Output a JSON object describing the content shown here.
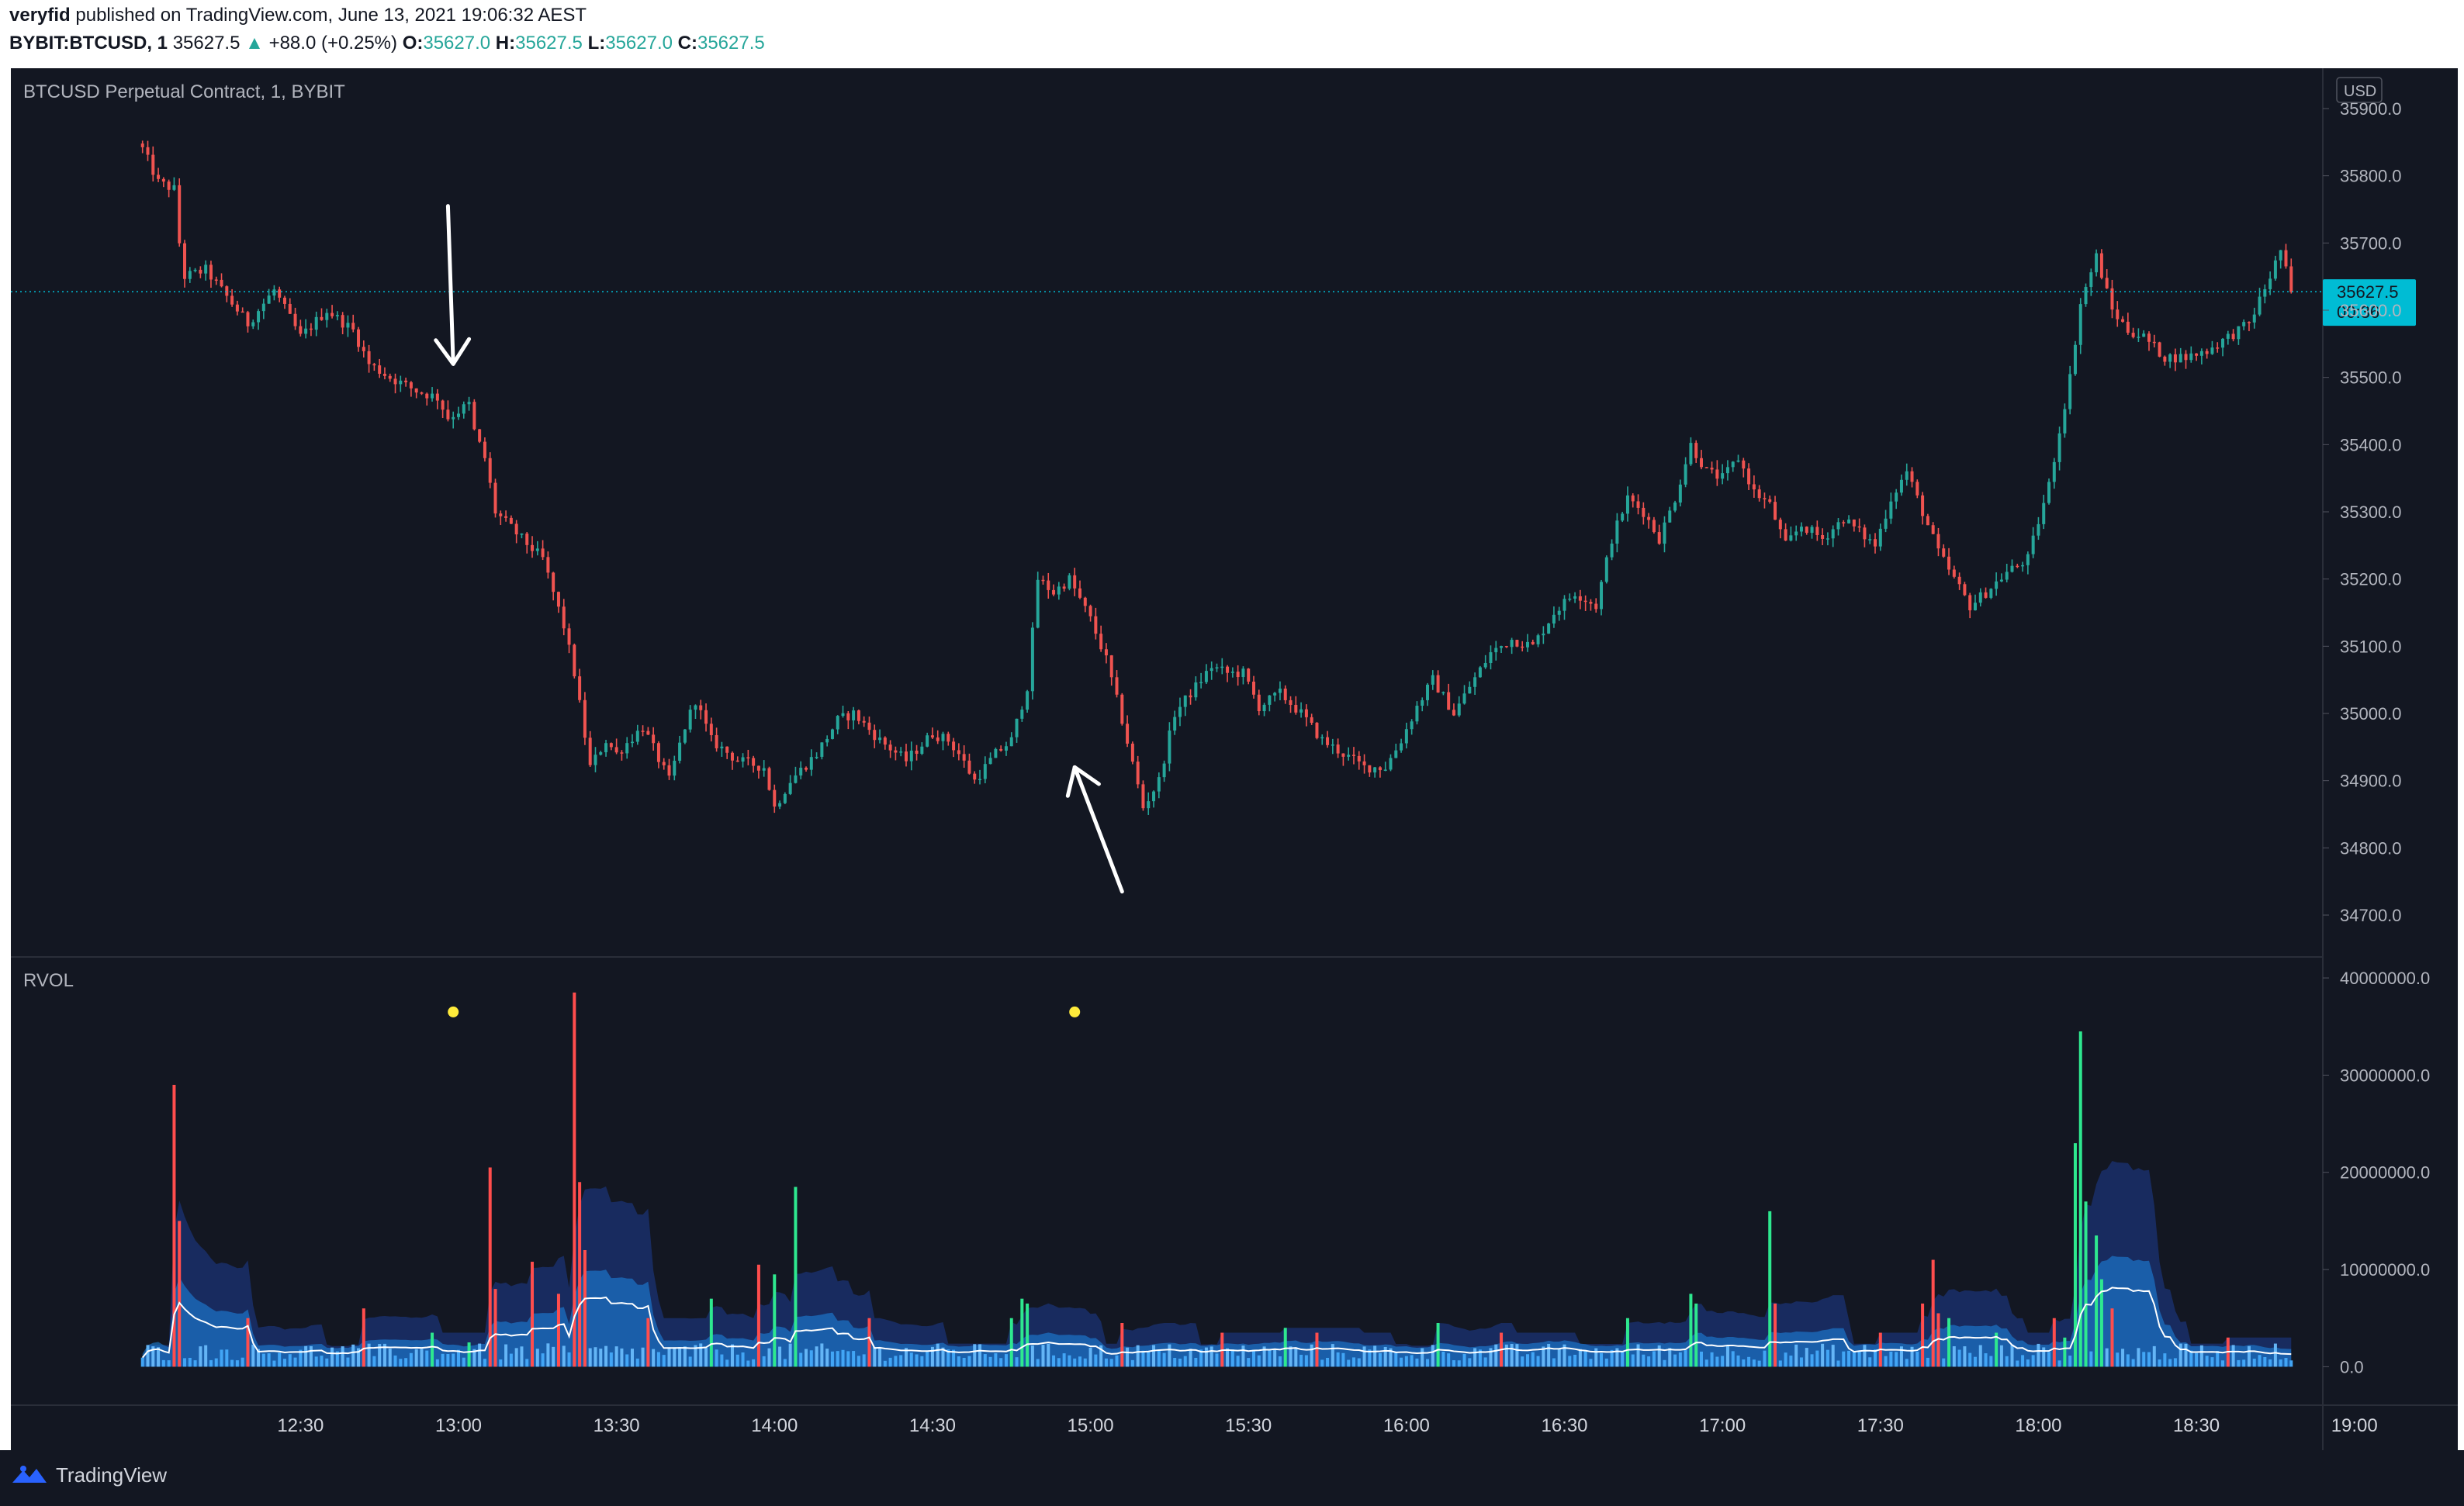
{
  "header": {
    "author": "veryfid",
    "published_text": "published on TradingView.com, June 13, 2021 19:06:32 AEST",
    "symbol": "BYBIT:BTCUSD, 1",
    "last_price": "35627.5",
    "change": "+88.0 (+0.25%)",
    "o_label": "O:",
    "o_value": "35627.0",
    "h_label": "H:",
    "h_value": "35627.5",
    "l_label": "L:",
    "l_value": "35627.0",
    "c_label": "C:",
    "c_value": "35627.5"
  },
  "footer": {
    "brand": "TradingView"
  },
  "colors": {
    "bg": "#131722",
    "up": "#26a69a",
    "down": "#ef5350",
    "text": "#b2b5be",
    "grid": "#2a2e39",
    "price_tag": "#00bcd4",
    "vol_up": "#2ee88f",
    "vol_down": "#ff4d4d",
    "rvol_band": "#2962ff",
    "marker": "#ffeb3b"
  },
  "chart_data": [
    {
      "type": "candlestick",
      "title": "BTCUSD Perpetual Contract, 1, BYBIT",
      "currency_label": "USD",
      "ylim": [
        34640,
        35960
      ],
      "y_ticks": [
        35900,
        35800,
        35700,
        35600,
        35500,
        35400,
        35300,
        35200,
        35100,
        35000,
        34900,
        34800,
        34700
      ],
      "x_range_minutes": [
        -25,
        414
      ],
      "x_ticks": [
        {
          "label": "12:30",
          "minute": 30
        },
        {
          "label": "13:00",
          "minute": 60
        },
        {
          "label": "13:30",
          "minute": 90
        },
        {
          "label": "14:00",
          "minute": 120
        },
        {
          "label": "14:30",
          "minute": 150
        },
        {
          "label": "15:00",
          "minute": 180
        },
        {
          "label": "15:30",
          "minute": 210
        },
        {
          "label": "16:00",
          "minute": 240
        },
        {
          "label": "16:30",
          "minute": 270
        },
        {
          "label": "17:00",
          "minute": 300
        },
        {
          "label": "17:30",
          "minute": 330
        },
        {
          "label": "18:00",
          "minute": 360
        },
        {
          "label": "18:30",
          "minute": 390
        },
        {
          "label": "19:00",
          "minute": 420
        }
      ],
      "current_price": {
        "value": 35627.5,
        "label": "35627.5",
        "countdown": "00:36"
      },
      "path_knots": [
        [
          0,
          35840
        ],
        [
          3,
          35790
        ],
        [
          6,
          35780
        ],
        [
          7,
          35700
        ],
        [
          8,
          35650
        ],
        [
          12,
          35660
        ],
        [
          16,
          35620
        ],
        [
          20,
          35580
        ],
        [
          25,
          35630
        ],
        [
          30,
          35560
        ],
        [
          35,
          35600
        ],
        [
          40,
          35570
        ],
        [
          43,
          35520
        ],
        [
          47,
          35500
        ],
        [
          52,
          35480
        ],
        [
          56,
          35470
        ],
        [
          58,
          35440
        ],
        [
          62,
          35460
        ],
        [
          63,
          35420
        ],
        [
          65,
          35380
        ],
        [
          67,
          35300
        ],
        [
          72,
          35260
        ],
        [
          76,
          35230
        ],
        [
          80,
          35130
        ],
        [
          82,
          35060
        ],
        [
          85,
          34920
        ],
        [
          88,
          34960
        ],
        [
          90,
          34940
        ],
        [
          95,
          34980
        ],
        [
          100,
          34900
        ],
        [
          103,
          34980
        ],
        [
          105,
          35020
        ],
        [
          108,
          34960
        ],
        [
          113,
          34930
        ],
        [
          118,
          34920
        ],
        [
          120,
          34860
        ],
        [
          123,
          34900
        ],
        [
          128,
          34940
        ],
        [
          132,
          34990
        ],
        [
          135,
          35000
        ],
        [
          140,
          34960
        ],
        [
          145,
          34930
        ],
        [
          150,
          34970
        ],
        [
          153,
          34960
        ],
        [
          155,
          34940
        ],
        [
          158,
          34900
        ],
        [
          160,
          34920
        ],
        [
          162,
          34940
        ],
        [
          165,
          34960
        ],
        [
          168,
          35040
        ],
        [
          170,
          35200
        ],
        [
          173,
          35180
        ],
        [
          176,
          35200
        ],
        [
          180,
          35140
        ],
        [
          183,
          35080
        ],
        [
          186,
          34990
        ],
        [
          190,
          34860
        ],
        [
          193,
          34900
        ],
        [
          196,
          35000
        ],
        [
          200,
          35040
        ],
        [
          203,
          35070
        ],
        [
          206,
          35060
        ],
        [
          209,
          35060
        ],
        [
          212,
          35010
        ],
        [
          216,
          35030
        ],
        [
          220,
          35000
        ],
        [
          224,
          34960
        ],
        [
          228,
          34940
        ],
        [
          232,
          34920
        ],
        [
          236,
          34920
        ],
        [
          239,
          34960
        ],
        [
          242,
          35010
        ],
        [
          245,
          35050
        ],
        [
          249,
          35000
        ],
        [
          252,
          35040
        ],
        [
          256,
          35090
        ],
        [
          260,
          35110
        ],
        [
          264,
          35100
        ],
        [
          268,
          35150
        ],
        [
          272,
          35180
        ],
        [
          276,
          35160
        ],
        [
          279,
          35260
        ],
        [
          282,
          35320
        ],
        [
          285,
          35300
        ],
        [
          288,
          35260
        ],
        [
          291,
          35320
        ],
        [
          294,
          35400
        ],
        [
          297,
          35360
        ],
        [
          300,
          35350
        ],
        [
          303,
          35380
        ],
        [
          306,
          35330
        ],
        [
          309,
          35310
        ],
        [
          312,
          35250
        ],
        [
          315,
          35280
        ],
        [
          319,
          35260
        ],
        [
          323,
          35290
        ],
        [
          326,
          35270
        ],
        [
          329,
          35250
        ],
        [
          332,
          35320
        ],
        [
          335,
          35360
        ],
        [
          338,
          35300
        ],
        [
          341,
          35240
        ],
        [
          344,
          35200
        ],
        [
          347,
          35160
        ],
        [
          350,
          35180
        ],
        [
          354,
          35210
        ],
        [
          358,
          35230
        ],
        [
          362,
          35340
        ],
        [
          366,
          35500
        ],
        [
          368,
          35610
        ],
        [
          371,
          35680
        ],
        [
          374,
          35600
        ],
        [
          377,
          35570
        ],
        [
          380,
          35560
        ],
        [
          384,
          35530
        ],
        [
          388,
          35530
        ],
        [
          392,
          35540
        ],
        [
          396,
          35560
        ],
        [
          400,
          35580
        ],
        [
          404,
          35650
        ],
        [
          406,
          35690
        ],
        [
          408,
          35627
        ]
      ],
      "annotations": [
        {
          "type": "arrow",
          "direction": "down",
          "tail_minute": 58,
          "tail_price": 35755,
          "head_minute": 59,
          "head_price": 35520
        },
        {
          "type": "arrow",
          "direction": "up",
          "tail_minute": 186,
          "tail_price": 34735,
          "head_minute": 177,
          "head_price": 34920
        }
      ]
    },
    {
      "type": "histogram",
      "title": "RVOL",
      "ylim": [
        -3000000,
        42000000
      ],
      "y_ticks": [
        {
          "value": 40000000,
          "label": "40000000.0"
        },
        {
          "value": 30000000,
          "label": "30000000.0"
        },
        {
          "value": 20000000,
          "label": "20000000.0"
        },
        {
          "value": 10000000,
          "label": "10000000.0"
        },
        {
          "value": 0,
          "label": "0.0"
        }
      ],
      "base_volume": 1500000,
      "spikes": [
        {
          "minute": 6,
          "value": 29000000,
          "dir": "down"
        },
        {
          "minute": 7,
          "value": 15000000,
          "dir": "down"
        },
        {
          "minute": 20,
          "value": 5000000,
          "dir": "down"
        },
        {
          "minute": 42,
          "value": 6000000,
          "dir": "down"
        },
        {
          "minute": 55,
          "value": 3500000,
          "dir": "up"
        },
        {
          "minute": 62,
          "value": 2500000,
          "dir": "up"
        },
        {
          "minute": 66,
          "value": 20500000,
          "dir": "down"
        },
        {
          "minute": 67,
          "value": 8000000,
          "dir": "down"
        },
        {
          "minute": 74,
          "value": 10800000,
          "dir": "down"
        },
        {
          "minute": 79,
          "value": 7500000,
          "dir": "down"
        },
        {
          "minute": 82,
          "value": 38500000,
          "dir": "down"
        },
        {
          "minute": 83,
          "value": 19000000,
          "dir": "down"
        },
        {
          "minute": 84,
          "value": 12000000,
          "dir": "down"
        },
        {
          "minute": 96,
          "value": 5000000,
          "dir": "down"
        },
        {
          "minute": 108,
          "value": 7000000,
          "dir": "up"
        },
        {
          "minute": 117,
          "value": 10500000,
          "dir": "down"
        },
        {
          "minute": 120,
          "value": 9500000,
          "dir": "up"
        },
        {
          "minute": 124,
          "value": 18500000,
          "dir": "up"
        },
        {
          "minute": 138,
          "value": 5000000,
          "dir": "down"
        },
        {
          "minute": 165,
          "value": 5000000,
          "dir": "up"
        },
        {
          "minute": 167,
          "value": 7000000,
          "dir": "up"
        },
        {
          "minute": 168,
          "value": 6500000,
          "dir": "up"
        },
        {
          "minute": 186,
          "value": 4500000,
          "dir": "down"
        },
        {
          "minute": 205,
          "value": 3500000,
          "dir": "down"
        },
        {
          "minute": 217,
          "value": 4000000,
          "dir": "up"
        },
        {
          "minute": 223,
          "value": 3500000,
          "dir": "down"
        },
        {
          "minute": 246,
          "value": 4500000,
          "dir": "up"
        },
        {
          "minute": 258,
          "value": 3500000,
          "dir": "down"
        },
        {
          "minute": 282,
          "value": 5000000,
          "dir": "up"
        },
        {
          "minute": 294,
          "value": 7500000,
          "dir": "up"
        },
        {
          "minute": 295,
          "value": 6500000,
          "dir": "up"
        },
        {
          "minute": 309,
          "value": 16000000,
          "dir": "up"
        },
        {
          "minute": 310,
          "value": 6500000,
          "dir": "down"
        },
        {
          "minute": 330,
          "value": 3500000,
          "dir": "down"
        },
        {
          "minute": 338,
          "value": 6500000,
          "dir": "down"
        },
        {
          "minute": 340,
          "value": 11000000,
          "dir": "down"
        },
        {
          "minute": 341,
          "value": 5500000,
          "dir": "down"
        },
        {
          "minute": 343,
          "value": 5000000,
          "dir": "up"
        },
        {
          "minute": 352,
          "value": 3500000,
          "dir": "up"
        },
        {
          "minute": 363,
          "value": 5000000,
          "dir": "down"
        },
        {
          "minute": 365,
          "value": 3000000,
          "dir": "up"
        },
        {
          "minute": 367,
          "value": 23000000,
          "dir": "up"
        },
        {
          "minute": 368,
          "value": 34500000,
          "dir": "up"
        },
        {
          "minute": 369,
          "value": 17000000,
          "dir": "up"
        },
        {
          "minute": 371,
          "value": 13500000,
          "dir": "up"
        },
        {
          "minute": 372,
          "value": 9000000,
          "dir": "up"
        },
        {
          "minute": 374,
          "value": 6000000,
          "dir": "down"
        },
        {
          "minute": 396,
          "value": 3000000,
          "dir": "down"
        }
      ],
      "markers": [
        {
          "minute": 59,
          "value": 36500000
        },
        {
          "minute": 177,
          "value": 36500000
        }
      ]
    }
  ]
}
